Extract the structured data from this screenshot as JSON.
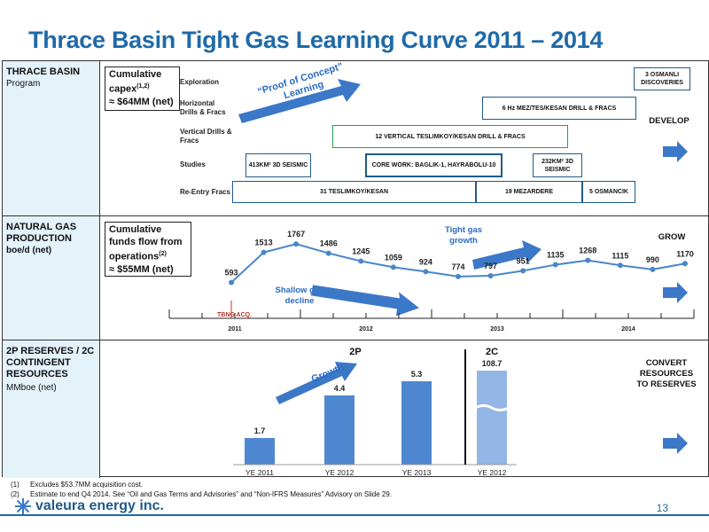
{
  "title": "Thrace Basin Tight Gas Learning Curve 2011 – 2014",
  "rows": {
    "program": {
      "heading": "THRACE BASIN",
      "sub": "Program",
      "capex_label": "Cumulative capex",
      "capex_sup": "(1,2)",
      "capex_value": "≈ $64MM (net)",
      "action": "DEVELOP",
      "arrow_text": "“Proof of Concept” Learning",
      "row_labels": [
        "Exploration",
        "Horizontal Drills & Fracs",
        "Vertical Drills & Fracs",
        "Studies",
        "Re-Entry Fracs"
      ],
      "boxes": {
        "osmanli": "3 OSMANLI DISCOVERIES",
        "horizontal": "6 Hz MEZ/TES/KESAN DRILL & FRACS",
        "vertical": "12 VERTICAL TESLIMKOY/KESAN DRILL & FRACS",
        "seismic413": "413KM² 3D SEISMIC",
        "corework": "CORE WORK: BAGLIK-1, HAYRABOLU-10",
        "seismic232": "232KM² 3D SEISMIC",
        "reentry1": "31 TESLIMKOY/KESAN",
        "reentry2": "19 MEZARDERE",
        "reentry3": "5 OSMANCIK"
      }
    },
    "production": {
      "heading": "NATURAL GAS PRODUCTION",
      "sub": "boe/d (net)",
      "funds_label": "Cumulative funds flow from operations",
      "funds_sup": "(2)",
      "funds_value": "≈ $55MM (net)",
      "action": "GROW",
      "tight_gas": "Tight gas growth",
      "shallow_gas": "Shallow gas decline",
      "tbng": "TBNG ACQ.",
      "years": [
        "2011",
        "2012",
        "2013",
        "2014"
      ]
    },
    "reserves": {
      "heading": "2P RESERVES / 2C CONTINGENT RESOURCES",
      "sub": "MMboe (net)",
      "label_2p": "2P",
      "label_2c": "2C",
      "growth": "Growth",
      "action": "CONVERT RESOURCES TO RESERVES"
    }
  },
  "chart_data": [
    {
      "type": "line",
      "values": [
        593,
        1513,
        1767,
        1486,
        1245,
        1059,
        924,
        774,
        797,
        951,
        1135,
        1268,
        1115,
        990,
        1170
      ],
      "labels": [
        "593",
        "1513",
        "1767",
        "1486",
        "1245",
        "1059",
        "924",
        "774",
        "797",
        "951",
        "1135",
        "1268",
        "1115",
        "990",
        "1170"
      ],
      "title": "",
      "ylabel": "boe/d (net)",
      "x_ticks": [
        "2011",
        "2012",
        "2013",
        "2014"
      ],
      "grid": false,
      "color": "#4a86c8"
    },
    {
      "type": "bar",
      "categories": [
        "YE 2011",
        "YE 2012",
        "YE 2013",
        "YE 2012"
      ],
      "values": [
        1.7,
        4.4,
        5.3,
        108.7
      ],
      "labels": [
        "1.7",
        "4.4",
        "5.3",
        "108.7"
      ],
      "groups": [
        "2P",
        "2P",
        "2P",
        "2C"
      ],
      "ylabel": "MMboe (net)",
      "colors": [
        "#4f87d1",
        "#4f87d1",
        "#4f87d1",
        "#94b6e6"
      ],
      "axis_break_on": "108.7"
    }
  ],
  "footnotes": [
    {
      "num": "(1)",
      "text": "Excludes $53.7MM acquisition cost."
    },
    {
      "num": "(2)",
      "text": "Estimate to end Q4 2014. See “Oil and Gas Terms and Advisories” and “Non-IFRS Measures” Advisory on Slide 29."
    }
  ],
  "logo_text": "valeura energy inc.",
  "page_number": "13",
  "colors": {
    "title": "#1f6aa8",
    "label_bg": "#e4f2fa",
    "arrow": "#3b78c8",
    "green": "#2f9e4a"
  }
}
